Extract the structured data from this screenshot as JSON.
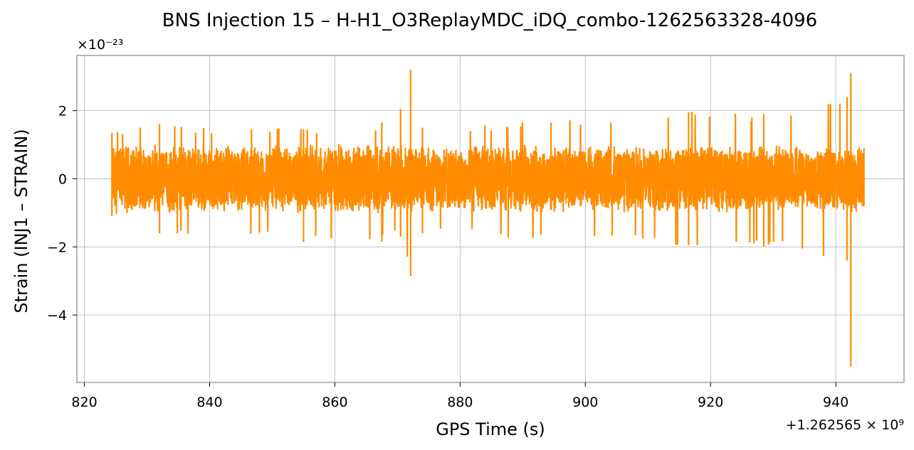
{
  "chart_data": {
    "type": "line",
    "title": "BNS Injection 15 – H-H1_O3ReplayMDC_iDQ_combo-1262563328-4096",
    "xlabel": "GPS Time (s)",
    "ylabel": "Strain (INJ1 – STRAIN)",
    "x_offset_label": "+1.262565 × 10⁹",
    "y_scale_label": "×10⁻²³",
    "x_offset": 1262565000,
    "y_scale": 1e-23,
    "xlim": [
      818.8,
      950.9
    ],
    "ylim": [
      -5.98,
      3.62
    ],
    "x_ticks": [
      820,
      840,
      860,
      880,
      900,
      920,
      940
    ],
    "x_tick_labels": [
      "820",
      "840",
      "860",
      "880",
      "900",
      "920",
      "940"
    ],
    "y_ticks": [
      -4,
      -2,
      0,
      2
    ],
    "y_tick_labels": [
      "−4",
      "−2",
      "0",
      "2"
    ],
    "grid": true,
    "line_color": "#ff8c00",
    "series": [
      {
        "x_range": [
          824.4,
          944.5
        ],
        "typical_amplitude": 1.0,
        "envelope": [
          {
            "x": 824.4,
            "min": -1.1,
            "max": 1.35
          },
          {
            "x": 832.0,
            "min": -1.6,
            "max": 1.6
          },
          {
            "x": 855.0,
            "min": -1.85,
            "max": 1.45
          },
          {
            "x": 867.5,
            "min": -1.85,
            "max": 1.65
          },
          {
            "x": 870.5,
            "min": -1.7,
            "max": 2.05
          },
          {
            "x": 872.1,
            "min": -2.85,
            "max": 3.2
          },
          {
            "x": 874.0,
            "min": -1.6,
            "max": 1.5
          },
          {
            "x": 916.5,
            "min": -1.95,
            "max": 1.95
          },
          {
            "x": 928.5,
            "min": -2.0,
            "max": 1.9
          },
          {
            "x": 941.8,
            "min": -2.4,
            "max": 2.4
          },
          {
            "x": 942.4,
            "min": -5.5,
            "max": 3.1
          },
          {
            "x": 944.5,
            "min": -0.8,
            "max": 0.9
          }
        ]
      }
    ]
  }
}
